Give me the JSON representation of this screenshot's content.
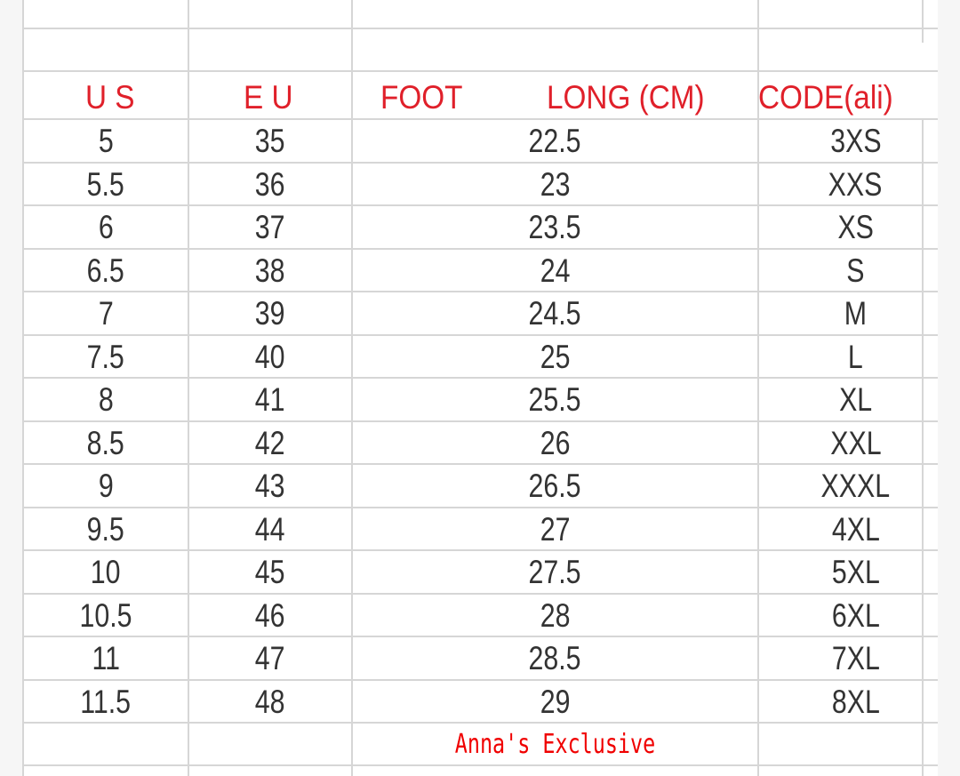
{
  "headers": {
    "us": "U S",
    "eu": "E  U",
    "foot": "FOOT",
    "long": "LONG (CM)",
    "code": "CODE(ali)"
  },
  "rows": [
    {
      "us": "5",
      "eu": "35",
      "cm": "22.5",
      "code": "3XS"
    },
    {
      "us": "5.5",
      "eu": "36",
      "cm": "23",
      "code": "XXS"
    },
    {
      "us": "6",
      "eu": "37",
      "cm": "23.5",
      "code": "XS"
    },
    {
      "us": "6.5",
      "eu": "38",
      "cm": "24",
      "code": "S"
    },
    {
      "us": "7",
      "eu": "39",
      "cm": "24.5",
      "code": "M"
    },
    {
      "us": "7.5",
      "eu": "40",
      "cm": "25",
      "code": "L"
    },
    {
      "us": "8",
      "eu": "41",
      "cm": "25.5",
      "code": "XL"
    },
    {
      "us": "8.5",
      "eu": "42",
      "cm": "26",
      "code": "XXL"
    },
    {
      "us": "9",
      "eu": "43",
      "cm": "26.5",
      "code": "XXXL"
    },
    {
      "us": "9.5",
      "eu": "44",
      "cm": "27",
      "code": "4XL"
    },
    {
      "us": "10",
      "eu": "45",
      "cm": "27.5",
      "code": "5XL"
    },
    {
      "us": "10.5",
      "eu": "46",
      "cm": "28",
      "code": "6XL"
    },
    {
      "us": "11",
      "eu": "47",
      "cm": "28.5",
      "code": "7XL"
    },
    {
      "us": "11.5",
      "eu": "48",
      "cm": "29",
      "code": "8XL"
    }
  ],
  "footer": {
    "brand": "Anna's Exclusive"
  },
  "colors": {
    "header_text": "#e0202a",
    "brand_text": "#f00000",
    "cell_text": "#333333",
    "grid": "#d6d6d6"
  }
}
